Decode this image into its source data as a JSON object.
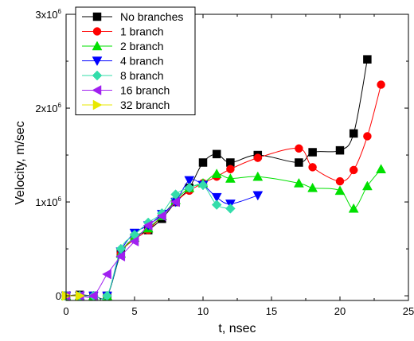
{
  "chart_data": {
    "type": "line",
    "xlabel": "t, nsec",
    "ylabel": "Velocity, m/sec",
    "xlim": [
      0,
      25
    ],
    "ylim": [
      -0.05,
      3.0
    ],
    "y_multiplier_label": "×10⁶",
    "x_ticks": [
      0,
      5,
      10,
      15,
      20,
      25
    ],
    "x_tick_labels": [
      "0",
      "5",
      "10",
      "15",
      "20",
      "25"
    ],
    "y_ticks": [
      0,
      1,
      2,
      3
    ],
    "y_tick_labels": [
      {
        "base": "0",
        "exp": ""
      },
      {
        "base": "1x10",
        "exp": "6"
      },
      {
        "base": "2x10",
        "exp": "6"
      },
      {
        "base": "3x10",
        "exp": "6"
      }
    ],
    "grid": false,
    "legend_position": "top-left",
    "series": [
      {
        "name": "No branches",
        "color": "#000000",
        "marker": "square",
        "x": [
          0,
          1,
          2,
          3,
          4,
          5,
          6,
          7,
          8,
          9,
          10,
          11,
          12,
          14,
          17,
          18,
          20,
          21,
          22
        ],
        "y": [
          0,
          0.01,
          0,
          0,
          0.45,
          0.62,
          0.7,
          0.82,
          1.0,
          1.15,
          1.42,
          1.51,
          1.42,
          1.5,
          1.42,
          1.53,
          1.55,
          1.73,
          2.52
        ]
      },
      {
        "name": "1 branch",
        "color": "#ff0000",
        "marker": "circle",
        "x": [
          0,
          1,
          2,
          3,
          4,
          5,
          6,
          7,
          8,
          9,
          10,
          11,
          12,
          14,
          17,
          18,
          20,
          21,
          22,
          23
        ],
        "y": [
          0,
          0,
          0,
          0,
          0.45,
          0.6,
          0.7,
          0.85,
          1.0,
          1.12,
          1.2,
          1.27,
          1.35,
          1.47,
          1.57,
          1.37,
          1.22,
          1.34,
          1.7,
          2.25
        ]
      },
      {
        "name": "2 branch",
        "color": "#00e000",
        "marker": "triangle-up",
        "x": [
          0,
          1,
          2,
          3,
          4,
          5,
          6,
          7,
          8,
          9,
          10,
          11,
          12,
          14,
          17,
          18,
          20,
          21,
          22,
          23
        ],
        "y": [
          0,
          0,
          0,
          0,
          0.45,
          0.62,
          0.72,
          0.85,
          1.02,
          1.15,
          1.2,
          1.3,
          1.25,
          1.27,
          1.2,
          1.15,
          1.12,
          0.93,
          1.17,
          1.35
        ]
      },
      {
        "name": "4 branch",
        "color": "#0000ff",
        "marker": "triangle-down",
        "x": [
          0,
          1,
          2,
          3,
          4,
          5,
          6,
          7,
          8,
          9,
          10,
          11,
          12,
          14
        ],
        "y": [
          0,
          0,
          0,
          0,
          0.47,
          0.67,
          0.75,
          0.87,
          1.0,
          1.23,
          1.18,
          1.05,
          0.98,
          1.07
        ]
      },
      {
        "name": "8 branch",
        "color": "#33ddaa",
        "marker": "diamond",
        "x": [
          0,
          1,
          2,
          3,
          4,
          5,
          6,
          7,
          8,
          9,
          10,
          11,
          12
        ],
        "y": [
          0,
          0,
          0,
          0,
          0.5,
          0.65,
          0.78,
          0.88,
          1.08,
          1.15,
          1.18,
          0.97,
          0.93
        ]
      },
      {
        "name": "16 branch",
        "color": "#a020f0",
        "marker": "triangle-left",
        "x": [
          0,
          1,
          2,
          3,
          4,
          5,
          6,
          7,
          8
        ],
        "y": [
          0,
          0,
          0,
          0.23,
          0.42,
          0.58,
          0.75,
          0.85,
          1.0
        ]
      },
      {
        "name": "32 branch",
        "color": "#e8e800",
        "marker": "triangle-right",
        "x": [
          0,
          1
        ],
        "y": [
          0,
          0
        ]
      }
    ]
  }
}
